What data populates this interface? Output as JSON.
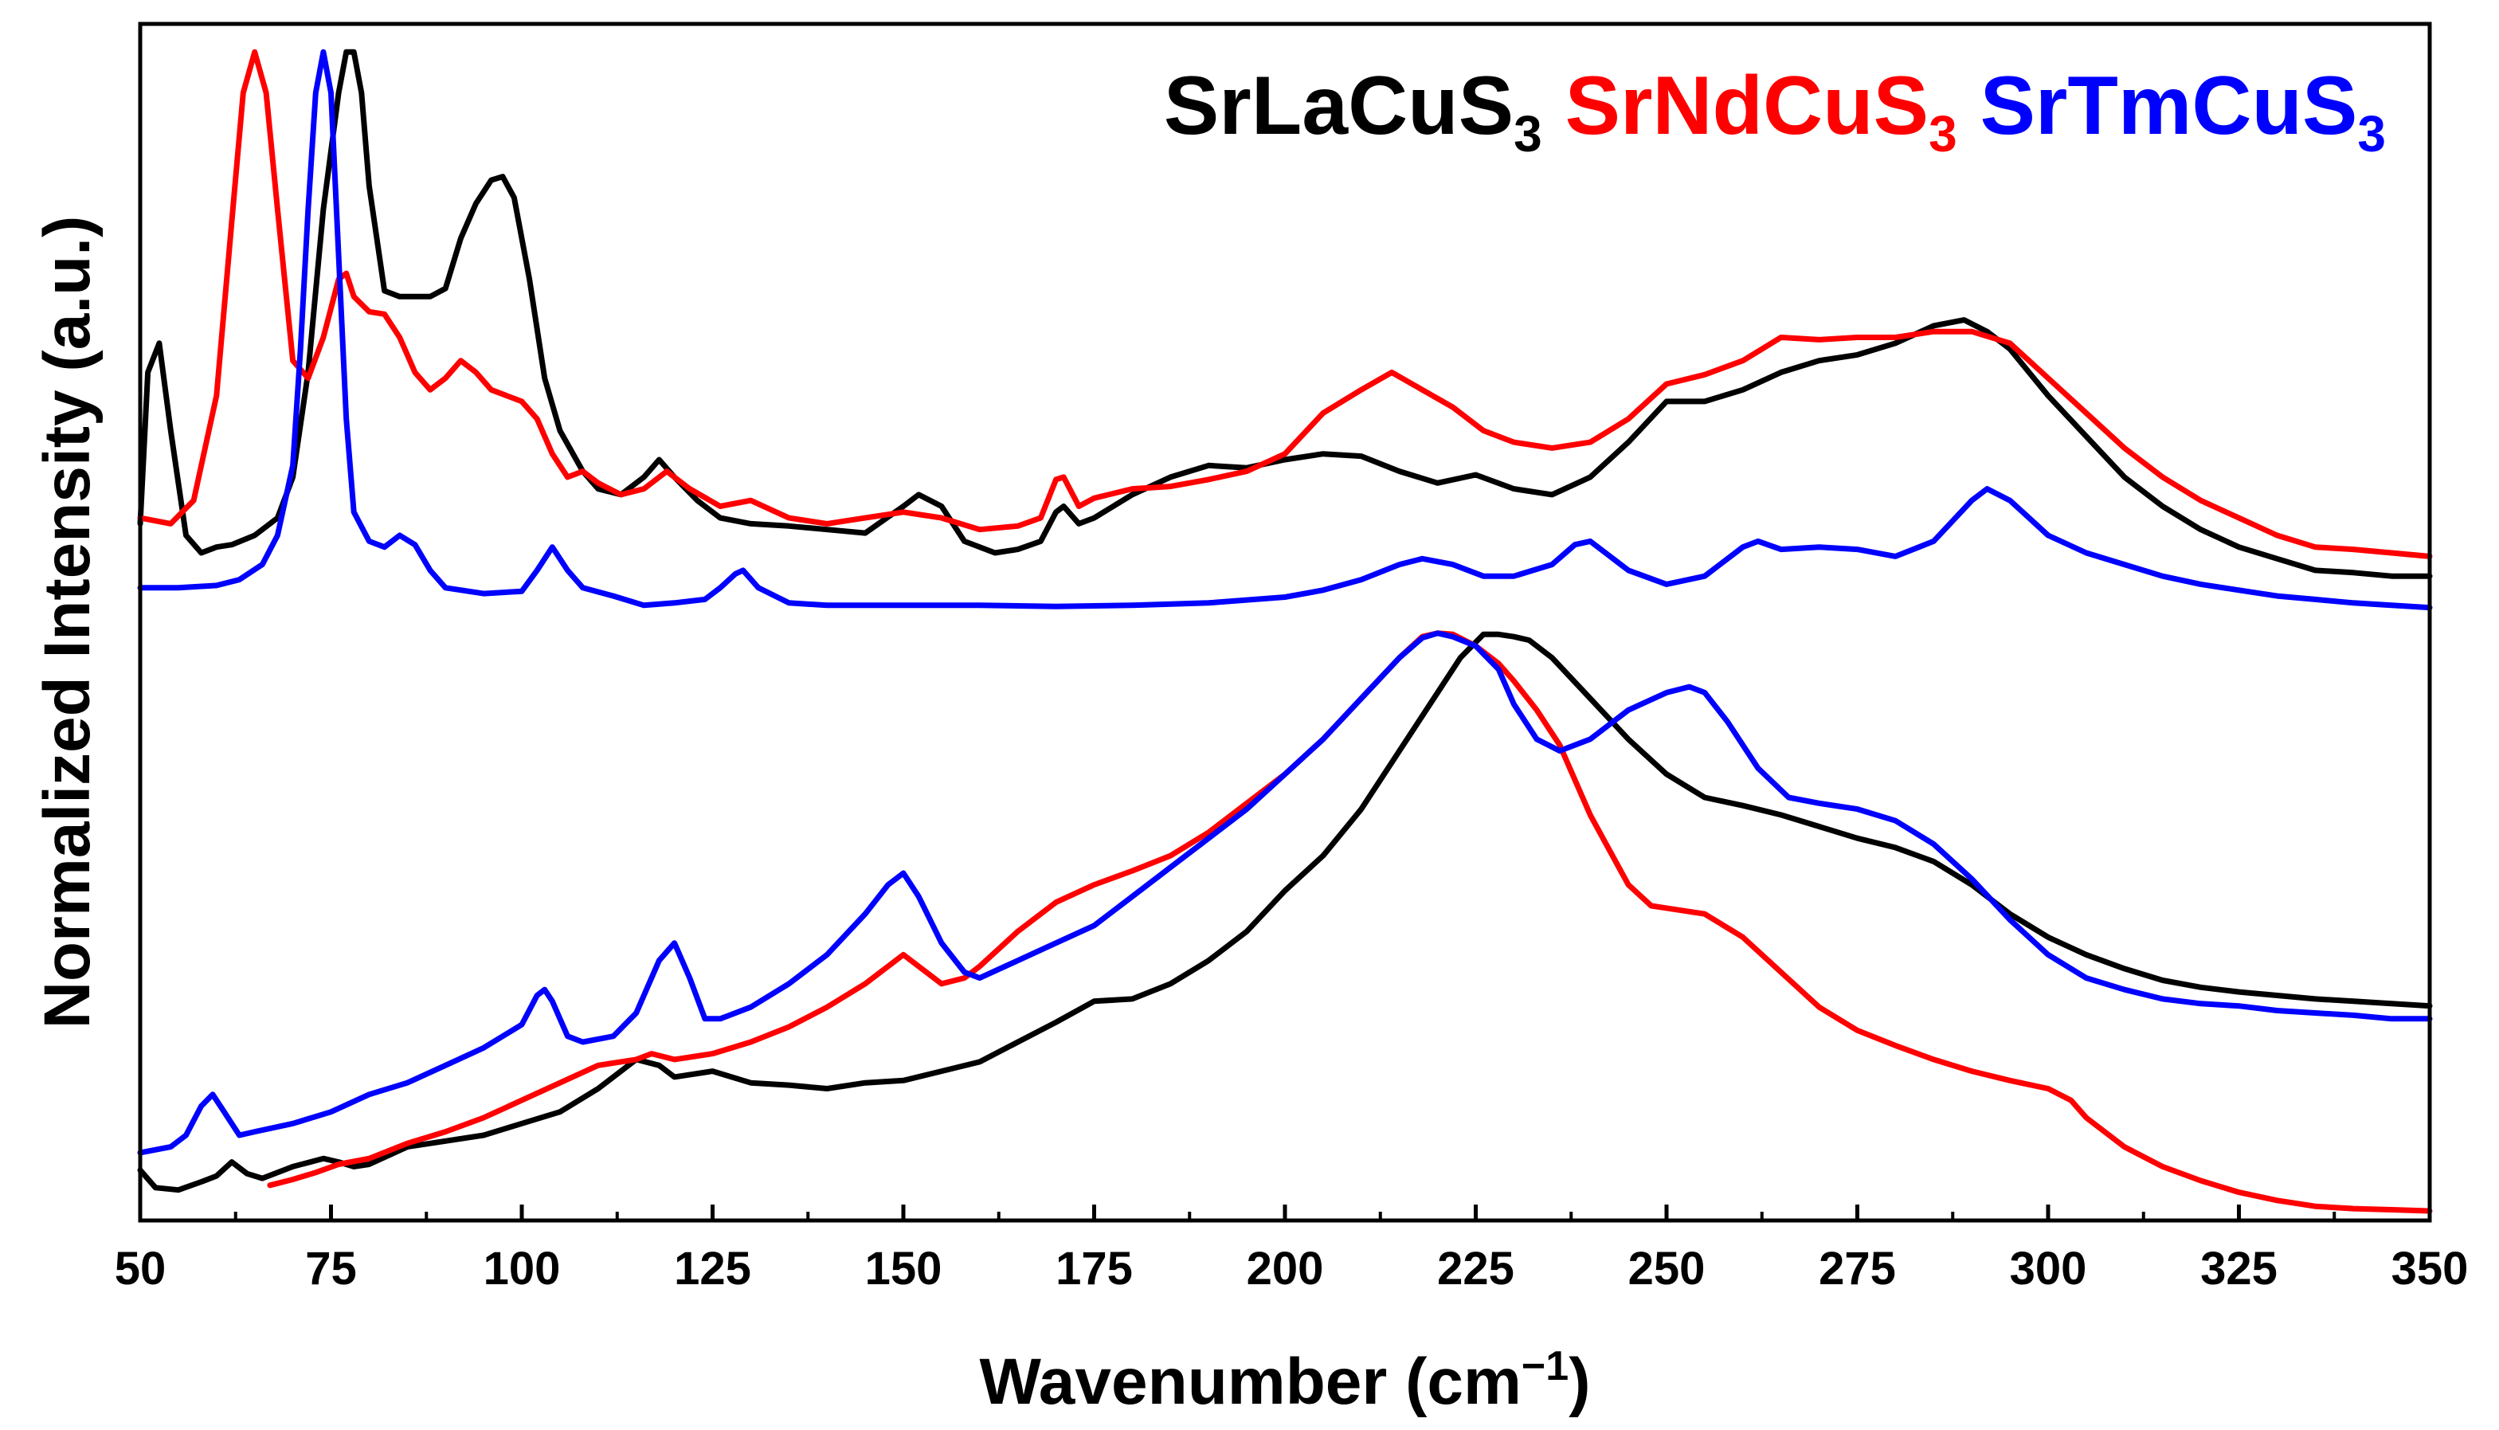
{
  "chart_data": {
    "type": "line",
    "title": "",
    "xlabel": "Wavenumber (cm",
    "xlabel_sup": "−1",
    "xlabel_tail": ")",
    "ylabel": "Normalized Intensity (a.u.)",
    "xlim": [
      50,
      350
    ],
    "ylim": [
      0,
      10
    ],
    "y_ticks_shown": false,
    "x_ticks": [
      50,
      75,
      100,
      125,
      150,
      175,
      200,
      225,
      250,
      275,
      300,
      325,
      350
    ],
    "x_tick_labels": [
      "50",
      "75",
      "100",
      "125",
      "150",
      "175",
      "200",
      "225",
      "250",
      "275",
      "300",
      "325",
      "350"
    ],
    "legend": [
      {
        "base": "SrLaCuS",
        "sub": "3",
        "color": "#000000"
      },
      {
        "base": "SrNdCuS",
        "sub": "3",
        "color": "#ff0000"
      },
      {
        "base": "SrTmCuS",
        "sub": "3",
        "color": "#0000ff"
      }
    ],
    "legend_position": "top-right",
    "series": [
      {
        "name": "SrLaCuS3 (upper)",
        "color": "#000000",
        "x": [
          50,
          51,
          52.5,
          54,
          56,
          58,
          60,
          62,
          65,
          68,
          70,
          72,
          74,
          76,
          77,
          78,
          79,
          80,
          82,
          84,
          86,
          88,
          90,
          92,
          94,
          96,
          97.5,
          99,
          101,
          103,
          105,
          108,
          110,
          113,
          116,
          118,
          120,
          123,
          126,
          130,
          135,
          140,
          145,
          150,
          152,
          155,
          158,
          162,
          165,
          168,
          170,
          171,
          173,
          175,
          180,
          185,
          190,
          195,
          200,
          205,
          210,
          215,
          220,
          225,
          230,
          235,
          240,
          245,
          250,
          255,
          260,
          265,
          270,
          275,
          280,
          285,
          289,
          292,
          295,
          300,
          305,
          310,
          315,
          320,
          325,
          330,
          335,
          340,
          345,
          350
        ],
        "y": [
          5.9,
          7.2,
          7.45,
          6.7,
          5.8,
          5.65,
          5.7,
          5.72,
          5.8,
          5.95,
          6.3,
          7.2,
          8.6,
          9.6,
          9.95,
          9.95,
          9.6,
          8.8,
          7.9,
          7.85,
          7.85,
          7.85,
          7.92,
          8.35,
          8.65,
          8.85,
          8.88,
          8.7,
          8.0,
          7.15,
          6.7,
          6.35,
          6.2,
          6.15,
          6.3,
          6.45,
          6.3,
          6.1,
          5.95,
          5.9,
          5.88,
          5.85,
          5.82,
          6.05,
          6.15,
          6.05,
          5.75,
          5.65,
          5.68,
          5.75,
          6.0,
          6.05,
          5.9,
          5.95,
          6.15,
          6.3,
          6.4,
          6.38,
          6.45,
          6.5,
          6.48,
          6.35,
          6.25,
          6.32,
          6.2,
          6.15,
          6.3,
          6.6,
          6.95,
          6.95,
          7.05,
          7.2,
          7.3,
          7.35,
          7.45,
          7.6,
          7.65,
          7.55,
          7.4,
          7.0,
          6.65,
          6.3,
          6.05,
          5.85,
          5.7,
          5.6,
          5.5,
          5.48,
          5.45,
          5.45
        ]
      },
      {
        "name": "SrNdCuS3 (upper)",
        "color": "#ff0000",
        "x": [
          50,
          54,
          57,
          60,
          62,
          63.5,
          65,
          66.5,
          68,
          70,
          72,
          74,
          76,
          77,
          78,
          80,
          82,
          84,
          86,
          88,
          90,
          92,
          94,
          96,
          98,
          100,
          102,
          104,
          106,
          108,
          110,
          113,
          116,
          119,
          122,
          126,
          130,
          135,
          140,
          145,
          150,
          155,
          160,
          165,
          168,
          170,
          171,
          173,
          175,
          180,
          185,
          190,
          195,
          200,
          205,
          210,
          214,
          218,
          222,
          226,
          230,
          235,
          240,
          245,
          250,
          255,
          260,
          265,
          270,
          275,
          280,
          285,
          290,
          295,
          300,
          305,
          310,
          315,
          320,
          325,
          330,
          335,
          340,
          345,
          350
        ],
        "y": [
          5.95,
          5.9,
          6.1,
          7.0,
          8.5,
          9.6,
          9.95,
          9.6,
          8.6,
          7.3,
          7.15,
          7.5,
          8.0,
          8.05,
          7.85,
          7.72,
          7.7,
          7.5,
          7.2,
          7.05,
          7.15,
          7.3,
          7.2,
          7.05,
          7.0,
          6.95,
          6.8,
          6.5,
          6.3,
          6.35,
          6.25,
          6.15,
          6.2,
          6.35,
          6.2,
          6.05,
          6.1,
          5.95,
          5.9,
          5.95,
          6.0,
          5.95,
          5.85,
          5.88,
          5.95,
          6.28,
          6.3,
          6.05,
          6.12,
          6.2,
          6.22,
          6.28,
          6.35,
          6.5,
          6.85,
          7.05,
          7.2,
          7.05,
          6.9,
          6.7,
          6.6,
          6.55,
          6.6,
          6.8,
          7.1,
          7.18,
          7.3,
          7.5,
          7.48,
          7.5,
          7.5,
          7.55,
          7.55,
          7.45,
          7.15,
          6.85,
          6.55,
          6.3,
          6.1,
          5.95,
          5.8,
          5.7,
          5.68,
          5.65,
          5.62
        ]
      },
      {
        "name": "SrTmCuS3 (upper)",
        "color": "#0000ff",
        "x": [
          50,
          55,
          60,
          63,
          66,
          68,
          70,
          71,
          72,
          73,
          74,
          75,
          76,
          77,
          78,
          80,
          82,
          84,
          86,
          88,
          90,
          95,
          100,
          102,
          104,
          106,
          108,
          112,
          116,
          120,
          124,
          126,
          128,
          129,
          131,
          135,
          140,
          150,
          160,
          170,
          180,
          190,
          200,
          205,
          210,
          215,
          218,
          222,
          226,
          230,
          235,
          238,
          240,
          242,
          245,
          250,
          255,
          260,
          262,
          265,
          270,
          275,
          280,
          285,
          290,
          292,
          295,
          300,
          305,
          310,
          315,
          320,
          325,
          330,
          335,
          340,
          345,
          350
        ],
        "y": [
          5.35,
          5.35,
          5.37,
          5.42,
          5.55,
          5.8,
          6.4,
          7.4,
          8.6,
          9.6,
          9.95,
          9.6,
          8.2,
          6.8,
          6.0,
          5.75,
          5.7,
          5.8,
          5.72,
          5.5,
          5.35,
          5.3,
          5.32,
          5.5,
          5.7,
          5.5,
          5.35,
          5.28,
          5.2,
          5.22,
          5.25,
          5.35,
          5.47,
          5.5,
          5.35,
          5.22,
          5.2,
          5.2,
          5.2,
          5.19,
          5.2,
          5.22,
          5.27,
          5.33,
          5.42,
          5.55,
          5.6,
          5.55,
          5.45,
          5.45,
          5.55,
          5.72,
          5.75,
          5.65,
          5.5,
          5.38,
          5.45,
          5.7,
          5.75,
          5.68,
          5.7,
          5.68,
          5.62,
          5.75,
          6.1,
          6.2,
          6.1,
          5.8,
          5.65,
          5.55,
          5.45,
          5.38,
          5.33,
          5.28,
          5.25,
          5.22,
          5.2,
          5.18
        ]
      },
      {
        "name": "SrLaCuS3 (lower)",
        "color": "#000000",
        "x": [
          50,
          52,
          55,
          58,
          60,
          62,
          64,
          66,
          70,
          74,
          76,
          78,
          80,
          85,
          90,
          95,
          100,
          105,
          110,
          115,
          118,
          120,
          125,
          130,
          135,
          140,
          145,
          150,
          155,
          160,
          165,
          170,
          175,
          180,
          185,
          190,
          195,
          200,
          205,
          210,
          215,
          220,
          223,
          226,
          228,
          230,
          232,
          235,
          240,
          245,
          250,
          255,
          260,
          265,
          270,
          275,
          280,
          285,
          290,
          295,
          300,
          305,
          310,
          315,
          320,
          325,
          330,
          335,
          340,
          345,
          350
        ],
        "y": [
          0.35,
          0.2,
          0.18,
          0.25,
          0.3,
          0.42,
          0.32,
          0.28,
          0.38,
          0.45,
          0.42,
          0.38,
          0.4,
          0.55,
          0.6,
          0.65,
          0.75,
          0.85,
          1.05,
          1.3,
          1.25,
          1.15,
          1.2,
          1.1,
          1.08,
          1.05,
          1.1,
          1.12,
          1.2,
          1.28,
          1.45,
          1.62,
          1.8,
          1.82,
          1.95,
          2.15,
          2.4,
          2.75,
          3.05,
          3.45,
          3.95,
          4.45,
          4.75,
          4.95,
          4.95,
          4.93,
          4.9,
          4.75,
          4.4,
          4.05,
          3.75,
          3.55,
          3.48,
          3.4,
          3.3,
          3.2,
          3.12,
          3.0,
          2.8,
          2.55,
          2.35,
          2.2,
          2.08,
          1.98,
          1.92,
          1.88,
          1.85,
          1.82,
          1.8,
          1.78,
          1.76
        ]
      },
      {
        "name": "SrNdCuS3 (lower)",
        "color": "#ff0000",
        "x": [
          67,
          70,
          73,
          76,
          80,
          85,
          90,
          95,
          100,
          105,
          110,
          115,
          117,
          120,
          125,
          130,
          135,
          140,
          145,
          148,
          150,
          152,
          155,
          158,
          160,
          165,
          170,
          175,
          180,
          185,
          190,
          195,
          200,
          205,
          210,
          215,
          218,
          220,
          222,
          225,
          228,
          230,
          233,
          236,
          240,
          245,
          248,
          250,
          255,
          260,
          265,
          270,
          275,
          280,
          285,
          290,
          295,
          300,
          303,
          305,
          310,
          315,
          320,
          325,
          330,
          335,
          340,
          345,
          350
        ],
        "y": [
          0.22,
          0.27,
          0.33,
          0.4,
          0.45,
          0.58,
          0.68,
          0.8,
          0.95,
          1.1,
          1.25,
          1.3,
          1.35,
          1.3,
          1.35,
          1.45,
          1.58,
          1.75,
          1.95,
          2.1,
          2.2,
          2.1,
          1.95,
          2.0,
          2.1,
          2.4,
          2.65,
          2.8,
          2.92,
          3.05,
          3.25,
          3.5,
          3.75,
          4.05,
          4.4,
          4.75,
          4.93,
          4.96,
          4.95,
          4.85,
          4.7,
          4.55,
          4.3,
          4.0,
          3.4,
          2.8,
          2.62,
          2.6,
          2.55,
          2.35,
          2.05,
          1.75,
          1.55,
          1.42,
          1.3,
          1.2,
          1.12,
          1.05,
          0.95,
          0.8,
          0.55,
          0.38,
          0.26,
          0.16,
          0.09,
          0.04,
          0.02,
          0.01,
          0.0
        ]
      },
      {
        "name": "SrTmCuS3 (lower)",
        "color": "#0000ff",
        "x": [
          50,
          54,
          56,
          58,
          59.5,
          61,
          63,
          65,
          70,
          75,
          80,
          85,
          90,
          95,
          100,
          102,
          103,
          104,
          106,
          108,
          112,
          115,
          118,
          120,
          122,
          124,
          126,
          130,
          135,
          140,
          145,
          148,
          150,
          152,
          155,
          158,
          160,
          165,
          170,
          175,
          180,
          185,
          190,
          195,
          200,
          205,
          210,
          215,
          218,
          220,
          222,
          225,
          228,
          230,
          233,
          236,
          240,
          245,
          250,
          253,
          255,
          258,
          262,
          266,
          270,
          275,
          280,
          285,
          290,
          295,
          300,
          305,
          310,
          315,
          320,
          325,
          330,
          335,
          340,
          345,
          350
        ],
        "y": [
          0.5,
          0.55,
          0.65,
          0.9,
          1.0,
          0.85,
          0.65,
          0.68,
          0.75,
          0.85,
          1.0,
          1.1,
          1.25,
          1.4,
          1.6,
          1.85,
          1.9,
          1.8,
          1.5,
          1.45,
          1.5,
          1.7,
          2.15,
          2.3,
          2.0,
          1.65,
          1.65,
          1.75,
          1.95,
          2.2,
          2.55,
          2.8,
          2.9,
          2.7,
          2.3,
          2.05,
          2.0,
          2.15,
          2.3,
          2.45,
          2.7,
          2.95,
          3.2,
          3.45,
          3.75,
          4.05,
          4.4,
          4.75,
          4.92,
          4.96,
          4.93,
          4.85,
          4.65,
          4.35,
          4.05,
          3.95,
          4.05,
          4.3,
          4.45,
          4.5,
          4.45,
          4.2,
          3.8,
          3.55,
          3.5,
          3.45,
          3.35,
          3.15,
          2.85,
          2.5,
          2.2,
          2.0,
          1.9,
          1.82,
          1.78,
          1.76,
          1.72,
          1.7,
          1.68,
          1.65,
          1.65
        ]
      }
    ]
  }
}
